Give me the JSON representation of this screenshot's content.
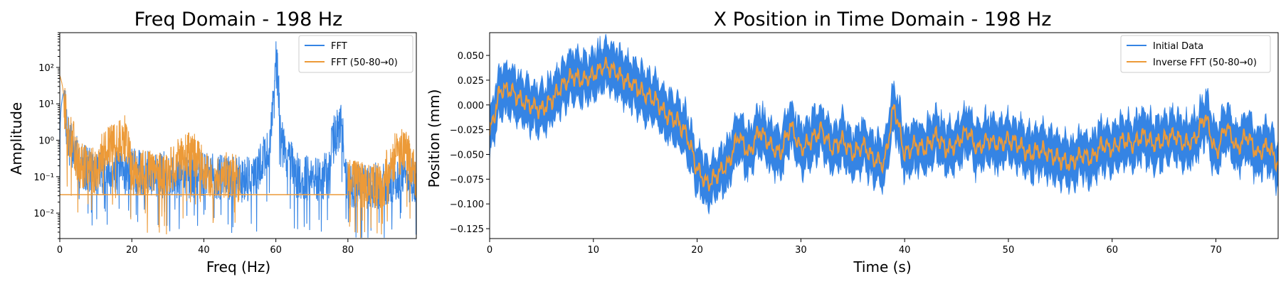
{
  "colors": {
    "fft": "#3584e4",
    "filtered": "#ec9a38"
  },
  "chart_data": [
    {
      "type": "line",
      "title": "Freq Domain - 198 Hz",
      "xlabel": "Freq (Hz)",
      "ylabel": "Amplitude",
      "xlim": [
        0,
        99
      ],
      "ylim": [
        0.002,
        900
      ],
      "yscale": "log",
      "grid": false,
      "legend": "top-right",
      "xticks": [
        0,
        20,
        40,
        60,
        80
      ],
      "xtick_labels": [
        "0",
        "20",
        "40",
        "60",
        "80"
      ],
      "yticks": [
        0.01,
        0.1,
        1,
        10,
        100
      ],
      "ytick_labels": [
        "10⁻²",
        "10⁻¹",
        "10⁰",
        "10¹",
        "10²"
      ],
      "series": [
        {
          "name": "FFT",
          "color": "#3584e4",
          "x": [
            0,
            1,
            2,
            5,
            10,
            20,
            30,
            40,
            50,
            55,
            58,
            59,
            60,
            61,
            62,
            65,
            70,
            75,
            78,
            79,
            80,
            85,
            90,
            95,
            99
          ],
          "y": [
            0.03,
            20,
            2,
            0.4,
            0.25,
            0.25,
            0.2,
            0.2,
            0.15,
            0.2,
            1.0,
            5,
            220,
            5,
            1.0,
            0.2,
            0.15,
            0.2,
            5,
            0.3,
            0.1,
            0.1,
            0.1,
            0.2,
            0.1
          ]
        },
        {
          "name": "FFT (50-80→0)",
          "color": "#ec9a38",
          "x": [
            0,
            1,
            2,
            4,
            5,
            10,
            18,
            20,
            30,
            37,
            40,
            48,
            50,
            51,
            60,
            70,
            79,
            80,
            85,
            90,
            95,
            99
          ],
          "y": [
            60,
            20,
            3,
            1.2,
            0.4,
            0.25,
            2.0,
            0.25,
            0.2,
            0.8,
            0.2,
            0.2,
            0.15,
            0.03,
            0.03,
            0.03,
            0.03,
            0.15,
            0.1,
            0.1,
            1.0,
            0.1
          ]
        }
      ]
    },
    {
      "type": "line",
      "title": "X Position in Time Domain - 198 Hz",
      "xlabel": "Time (s)",
      "ylabel": "Position (mm)",
      "xlim": [
        0,
        76
      ],
      "ylim": [
        -0.135,
        0.073
      ],
      "grid": false,
      "legend": "top-right",
      "xticks": [
        0,
        10,
        20,
        30,
        40,
        50,
        60,
        70
      ],
      "xtick_labels": [
        "0",
        "10",
        "20",
        "30",
        "40",
        "50",
        "60",
        "70"
      ],
      "yticks": [
        -0.125,
        -0.1,
        -0.075,
        -0.05,
        -0.025,
        0.0,
        0.025,
        0.05
      ],
      "ytick_labels": [
        "−0.125",
        "−0.100",
        "−0.075",
        "−0.050",
        "−0.025",
        "0.000",
        "0.025",
        "0.050"
      ],
      "series": [
        {
          "name": "Initial Data",
          "color": "#3584e4",
          "band_width": 0.045,
          "x": [
            0,
            1,
            2,
            3,
            4,
            5,
            6,
            7,
            8,
            9,
            10,
            11,
            12,
            13,
            14,
            15,
            16,
            17,
            18,
            19,
            20,
            21,
            22,
            23,
            24,
            25,
            26,
            27,
            28,
            29,
            30,
            31,
            32,
            33,
            34,
            35,
            36,
            37,
            38,
            39,
            40,
            41,
            42,
            43,
            44,
            45,
            46,
            47,
            48,
            49,
            50,
            51,
            52,
            53,
            54,
            55,
            56,
            57,
            58,
            59,
            60,
            61,
            62,
            63,
            64,
            65,
            66,
            67,
            68,
            69,
            70,
            71,
            72,
            73,
            74,
            75,
            76
          ],
          "y": [
            -0.03,
            0.015,
            0.015,
            0.005,
            0.0,
            -0.005,
            0.005,
            0.02,
            0.03,
            0.025,
            0.03,
            0.04,
            0.035,
            0.025,
            0.02,
            0.01,
            0.005,
            -0.01,
            -0.015,
            -0.03,
            -0.065,
            -0.08,
            -0.07,
            -0.06,
            -0.03,
            -0.05,
            -0.025,
            -0.04,
            -0.05,
            -0.02,
            -0.045,
            -0.035,
            -0.025,
            -0.045,
            -0.035,
            -0.05,
            -0.04,
            -0.055,
            -0.06,
            0.0,
            -0.05,
            -0.04,
            -0.045,
            -0.03,
            -0.045,
            -0.04,
            -0.025,
            -0.045,
            -0.035,
            -0.04,
            -0.035,
            -0.04,
            -0.05,
            -0.045,
            -0.05,
            -0.055,
            -0.06,
            -0.05,
            -0.055,
            -0.04,
            -0.045,
            -0.035,
            -0.04,
            -0.03,
            -0.04,
            -0.035,
            -0.03,
            -0.04,
            -0.035,
            -0.01,
            -0.05,
            -0.02,
            -0.045,
            -0.03,
            -0.05,
            -0.04,
            -0.06
          ]
        },
        {
          "name": "Inverse FFT (50-80→0)",
          "color": "#ec9a38",
          "x": [
            0,
            1,
            2,
            3,
            4,
            5,
            6,
            7,
            8,
            9,
            10,
            11,
            12,
            13,
            14,
            15,
            16,
            17,
            18,
            19,
            20,
            21,
            22,
            23,
            24,
            25,
            26,
            27,
            28,
            29,
            30,
            31,
            32,
            33,
            34,
            35,
            36,
            37,
            38,
            39,
            40,
            41,
            42,
            43,
            44,
            45,
            46,
            47,
            48,
            49,
            50,
            51,
            52,
            53,
            54,
            55,
            56,
            57,
            58,
            59,
            60,
            61,
            62,
            63,
            64,
            65,
            66,
            67,
            68,
            69,
            70,
            71,
            72,
            73,
            74,
            75,
            76
          ],
          "y": [
            -0.03,
            0.015,
            0.015,
            0.005,
            0.0,
            -0.005,
            0.005,
            0.02,
            0.03,
            0.025,
            0.03,
            0.04,
            0.035,
            0.025,
            0.02,
            0.01,
            0.005,
            -0.01,
            -0.015,
            -0.03,
            -0.065,
            -0.08,
            -0.07,
            -0.06,
            -0.03,
            -0.05,
            -0.025,
            -0.04,
            -0.05,
            -0.02,
            -0.045,
            -0.035,
            -0.025,
            -0.045,
            -0.035,
            -0.05,
            -0.04,
            -0.055,
            -0.06,
            0.0,
            -0.05,
            -0.04,
            -0.045,
            -0.03,
            -0.045,
            -0.04,
            -0.025,
            -0.045,
            -0.035,
            -0.04,
            -0.035,
            -0.04,
            -0.05,
            -0.045,
            -0.05,
            -0.055,
            -0.06,
            -0.05,
            -0.055,
            -0.04,
            -0.045,
            -0.035,
            -0.04,
            -0.03,
            -0.04,
            -0.035,
            -0.03,
            -0.04,
            -0.035,
            -0.01,
            -0.05,
            -0.02,
            -0.045,
            -0.03,
            -0.05,
            -0.04,
            -0.06
          ]
        }
      ]
    }
  ]
}
